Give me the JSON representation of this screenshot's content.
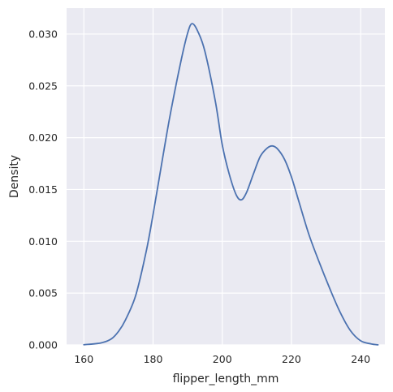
{
  "chart_data": {
    "type": "line",
    "title": "",
    "xlabel": "flipper_length_mm",
    "ylabel": "Density",
    "xlim": [
      155,
      247
    ],
    "ylim": [
      0,
      0.0325
    ],
    "x_ticks": [
      160,
      180,
      200,
      220,
      240
    ],
    "y_ticks": [
      0.0,
      0.005,
      0.01,
      0.015,
      0.02,
      0.025,
      0.03
    ],
    "x_tick_labels": [
      "160",
      "180",
      "200",
      "220",
      "240"
    ],
    "y_tick_labels": [
      "0.000",
      "0.005",
      "0.010",
      "0.015",
      "0.020",
      "0.025",
      "0.030"
    ],
    "grid": true,
    "background": "#eaeaf2",
    "grid_color": "#ffffff",
    "line_color": "#4c72b0",
    "series": [
      {
        "x": [
          160,
          165,
          168,
          170,
          172,
          175,
          178,
          180,
          183,
          185,
          188,
          190,
          191.3,
          193,
          195,
          198,
          200,
          202,
          204,
          205.5,
          207,
          209,
          211,
          213,
          214.5,
          216,
          218,
          220,
          222,
          225,
          228,
          231,
          234,
          237,
          240,
          243,
          245
        ],
        "y": [
          2e-05,
          0.0002,
          0.0006,
          0.0013,
          0.0024,
          0.0048,
          0.009,
          0.0126,
          0.0185,
          0.0223,
          0.0273,
          0.0301,
          0.031,
          0.0302,
          0.0283,
          0.0235,
          0.0193,
          0.0165,
          0.0145,
          0.014,
          0.0147,
          0.0165,
          0.0182,
          0.019,
          0.0192,
          0.0189,
          0.0179,
          0.0162,
          0.014,
          0.0107,
          0.008,
          0.0055,
          0.0032,
          0.0014,
          0.0004,
          0.0001,
          1e-05
        ]
      }
    ]
  }
}
